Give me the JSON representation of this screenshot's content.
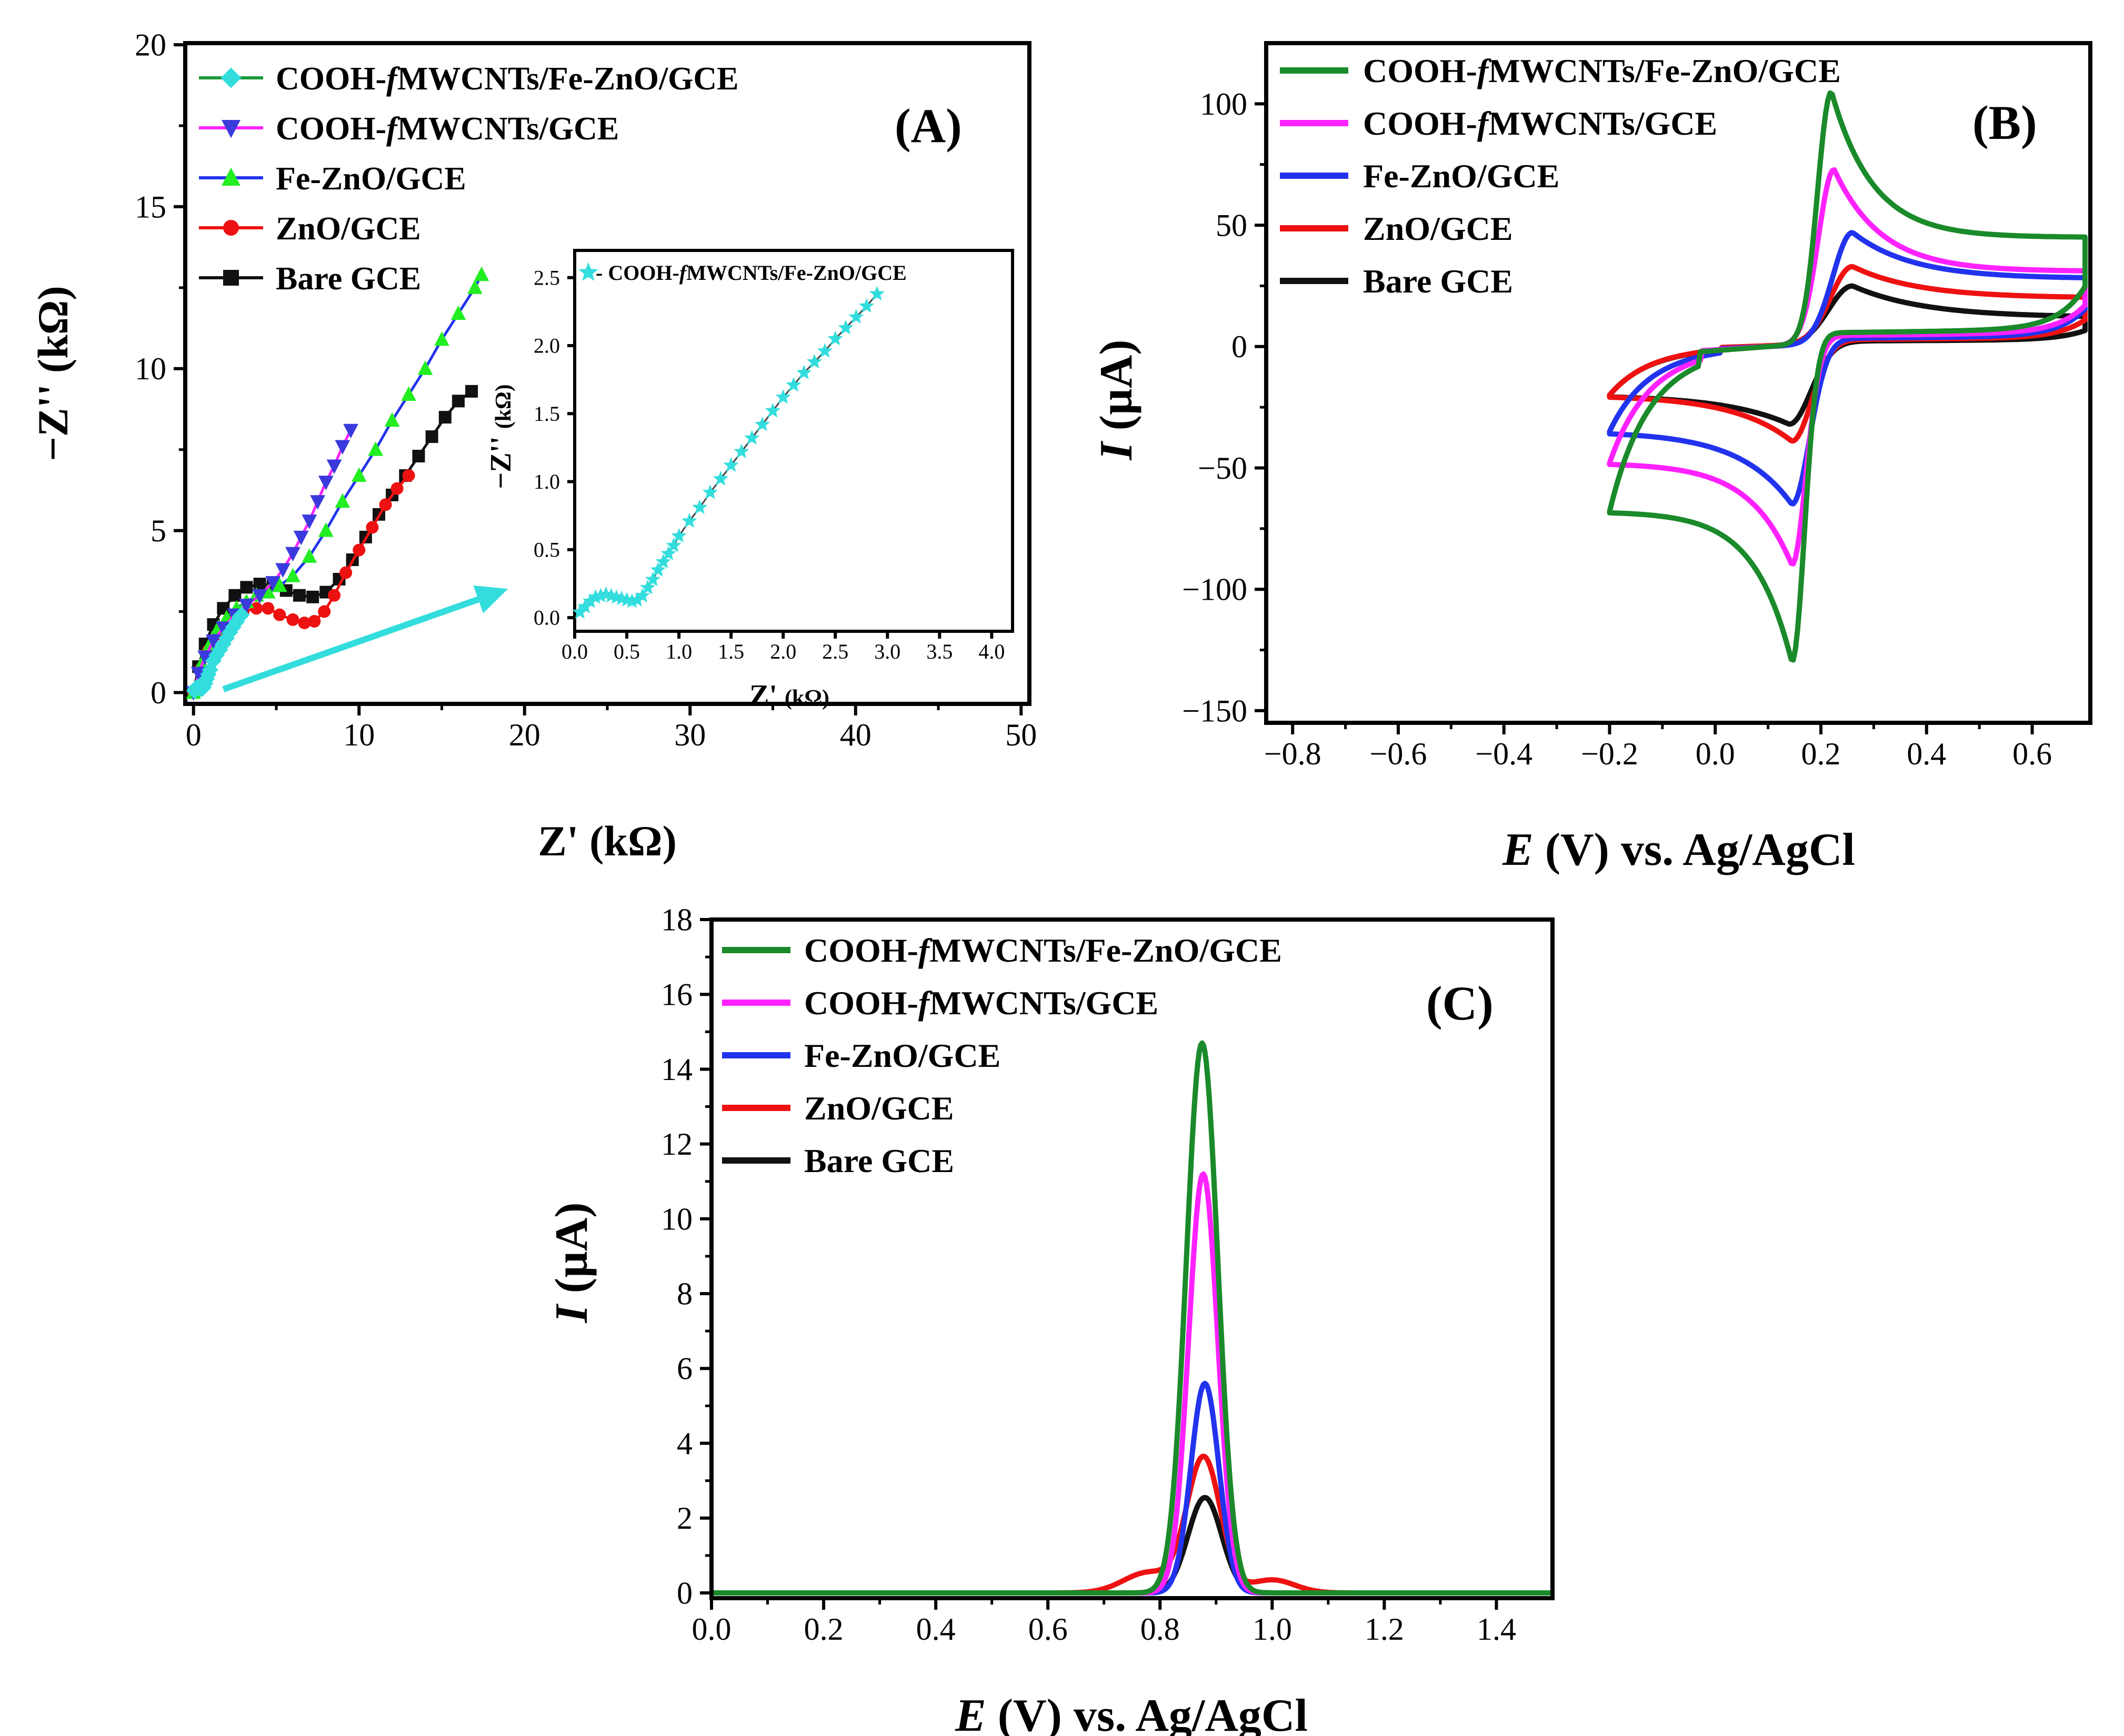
{
  "chart_data": [
    {
      "id": "A",
      "type": "scatter",
      "panel_label": "(A)",
      "title": "",
      "xlabel": "Z' (kΩ)",
      "ylabel": "−Z'' (kΩ)",
      "xlim": [
        0,
        50
      ],
      "ylim": [
        0,
        20
      ],
      "xticks": [
        0,
        10,
        20,
        30,
        40,
        50
      ],
      "yticks": [
        0,
        5,
        10,
        15,
        20
      ],
      "legend_position": "top-left",
      "series": [
        {
          "name": "COOH-fMWCNTs/Fe-ZnO/GCE",
          "label_pre": "COOH-",
          "label_ital": "f",
          "label_post": "MWCNTs/Fe-ZnO/GCE",
          "color": "#1a9a3a",
          "marker": "diamond",
          "marker_color": "#33dddd",
          "x": [
            0.05,
            0.1,
            0.15,
            0.2,
            0.25,
            0.3,
            0.35,
            0.4,
            0.45,
            0.5,
            0.55,
            0.6,
            0.7,
            0.8,
            0.9,
            1.0,
            1.2,
            1.4,
            1.6,
            1.8,
            2.0,
            2.2,
            2.4,
            2.6,
            2.8,
            2.9
          ],
          "y": [
            0.05,
            0.1,
            0.14,
            0.16,
            0.17,
            0.16,
            0.14,
            0.13,
            0.12,
            0.12,
            0.13,
            0.16,
            0.28,
            0.42,
            0.56,
            0.7,
            0.98,
            1.16,
            1.32,
            1.5,
            1.68,
            1.86,
            2.02,
            2.18,
            2.34,
            2.4
          ]
        },
        {
          "name": "COOH-fMWCNTs/GCE",
          "label_pre": "COOH-",
          "label_ital": "f",
          "label_post": "MWCNTs/GCE",
          "color": "#ff22ff",
          "marker": "triangle-down",
          "marker_color": "#3a3adc",
          "x": [
            0,
            0.3,
            0.7,
            1.2,
            1.8,
            2.5,
            3.2,
            4.0,
            4.8,
            5.4,
            6.0,
            6.5,
            7.0,
            7.5,
            8.0,
            8.5,
            9.0,
            9.5
          ],
          "y": [
            0,
            0.6,
            1.1,
            1.6,
            2.0,
            2.4,
            2.7,
            3.0,
            3.4,
            3.8,
            4.3,
            4.8,
            5.3,
            5.9,
            6.5,
            7.0,
            7.6,
            8.1
          ]
        },
        {
          "name": "Fe-ZnO/GCE",
          "label_pre": "Fe-ZnO/GCE",
          "label_ital": "",
          "label_post": "",
          "color": "#2233ee",
          "marker": "triangle-up",
          "marker_color": "#22ee22",
          "x": [
            0,
            0.5,
            1.0,
            1.5,
            2.0,
            2.6,
            3.2,
            3.8,
            4.5,
            5.2,
            6.0,
            7.0,
            8.0,
            9.0,
            10.0,
            11.0,
            12.0,
            13.0,
            14.0,
            15.0,
            16.0,
            17.0,
            17.4
          ],
          "y": [
            0,
            0.9,
            1.5,
            2.0,
            2.3,
            2.6,
            2.8,
            3.0,
            3.1,
            3.3,
            3.6,
            4.2,
            5.0,
            5.9,
            6.7,
            7.5,
            8.4,
            9.2,
            10.0,
            10.9,
            11.7,
            12.5,
            12.9
          ]
        },
        {
          "name": "ZnO/GCE",
          "label_pre": "ZnO/GCE",
          "label_ital": "",
          "label_post": "",
          "color": "#ee1111",
          "marker": "circle",
          "marker_color": "#ee1111",
          "x": [
            0,
            0.4,
            0.9,
            1.5,
            2.2,
            3.0,
            3.8,
            4.5,
            5.2,
            6.0,
            6.7,
            7.3,
            7.9,
            8.5,
            9.2,
            10.0,
            10.8,
            11.6,
            12.3,
            13.0
          ],
          "y": [
            0,
            0.7,
            1.3,
            1.8,
            2.2,
            2.5,
            2.6,
            2.6,
            2.4,
            2.25,
            2.15,
            2.2,
            2.5,
            3.0,
            3.7,
            4.4,
            5.1,
            5.8,
            6.3,
            6.7
          ]
        },
        {
          "name": "Bare GCE",
          "label_pre": "Bare GCE",
          "label_ital": "",
          "label_post": "",
          "color": "#111111",
          "marker": "square",
          "marker_color": "#111111",
          "x": [
            0,
            0.3,
            0.7,
            1.2,
            1.8,
            2.5,
            3.2,
            4.0,
            4.8,
            5.6,
            6.4,
            7.2,
            8.0,
            8.8,
            9.6,
            10.4,
            11.2,
            12.0,
            12.8,
            13.6,
            14.4,
            15.2,
            16.0,
            16.8
          ],
          "y": [
            0,
            0.8,
            1.5,
            2.1,
            2.6,
            3.0,
            3.25,
            3.35,
            3.3,
            3.15,
            3.0,
            2.95,
            3.1,
            3.5,
            4.1,
            4.8,
            5.5,
            6.1,
            6.7,
            7.3,
            7.9,
            8.5,
            9.0,
            9.3
          ]
        }
      ],
      "arrow": {
        "from": [
          1.8,
          0.1
        ],
        "to": [
          19.0,
          3.2
        ],
        "color": "#33dddd"
      },
      "inset": {
        "xlabel_main": "Z'",
        "xlabel_unit": "(kΩ)",
        "ylabel_main": "−Z''",
        "ylabel_unit": "(kΩ)",
        "xlim": [
          0,
          4.2
        ],
        "ylim": [
          -0.1,
          2.7
        ],
        "xticks": [
          "0.0",
          "0.5",
          "1.0",
          "1.5",
          "2.0",
          "2.5",
          "3.0",
          "3.5",
          "4.0"
        ],
        "yticks": [
          "0.0",
          "0.5",
          "1.0",
          "1.5",
          "2.0",
          "2.5"
        ],
        "series": [
          {
            "name": "COOH-fMWCNTs/Fe-ZnO/GCE",
            "label_pre": "- COOH-",
            "label_ital": "f",
            "label_post": "MWCNTs/Fe-ZnO/GCE",
            "color": "#33dddd",
            "marker": "star",
            "x": [
              0.05,
              0.1,
              0.15,
              0.2,
              0.25,
              0.3,
              0.35,
              0.4,
              0.45,
              0.5,
              0.55,
              0.6,
              0.65,
              0.7,
              0.75,
              0.8,
              0.85,
              0.9,
              0.95,
              1.0,
              1.1,
              1.2,
              1.3,
              1.4,
              1.5,
              1.6,
              1.7,
              1.8,
              1.9,
              2.0,
              2.1,
              2.2,
              2.3,
              2.4,
              2.5,
              2.6,
              2.7,
              2.8,
              2.9
            ],
            "y": [
              0.04,
              0.08,
              0.12,
              0.15,
              0.16,
              0.17,
              0.16,
              0.15,
              0.14,
              0.13,
              0.12,
              0.13,
              0.16,
              0.22,
              0.28,
              0.35,
              0.41,
              0.47,
              0.53,
              0.6,
              0.71,
              0.81,
              0.92,
              1.02,
              1.12,
              1.22,
              1.32,
              1.42,
              1.52,
              1.62,
              1.71,
              1.8,
              1.88,
              1.96,
              2.05,
              2.13,
              2.21,
              2.29,
              2.38
            ]
          }
        ]
      }
    },
    {
      "id": "B",
      "type": "line",
      "panel_label": "(B)",
      "title": "",
      "xlabel": "E (V) vs. Ag/AgCl",
      "xlabel_ital": "E",
      "xlabel_rest": " (V) vs. Ag/AgCl",
      "ylabel": "I (µA)",
      "ylabel_ital": "I",
      "ylabel_rest": " (µA)",
      "xlim": [
        -0.8,
        0.7
      ],
      "ylim": [
        -150,
        125
      ],
      "xticks": [
        "−0.8",
        "−0.6",
        "−0.4",
        "−0.2",
        "0.0",
        "0.2",
        "0.4",
        "0.6"
      ],
      "xtick_values": [
        -0.8,
        -0.6,
        -0.4,
        -0.2,
        0.0,
        0.2,
        0.4,
        0.6
      ],
      "yticks": [
        "−150",
        "−100",
        "−50",
        "0",
        "50",
        "100"
      ],
      "ytick_values": [
        -150,
        -100,
        -50,
        0,
        50,
        100
      ],
      "legend_position": "top-left",
      "series": [
        {
          "name": "COOH-fMWCNTs/Fe-ZnO/GCE",
          "label_pre": "COOH-",
          "label_ital": "f",
          "label_post": "MWCNTs/Fe-ZnO/GCE",
          "color": "#1a8a2a",
          "ipa": 105,
          "ipc": -130,
          "epa": 0.22,
          "epc": 0.145,
          "wa": 0.035,
          "wc": 0.032,
          "iend": 45,
          "istart": -68,
          "bgp": 10,
          "bgn": -5
        },
        {
          "name": "COOH-fMWCNTs/GCE",
          "label_pre": "COOH-",
          "label_ital": "f",
          "label_post": "MWCNTs/GCE",
          "color": "#ff22ff",
          "ipa": 73,
          "ipc": -90,
          "epa": 0.225,
          "epc": 0.145,
          "wa": 0.04,
          "wc": 0.036,
          "iend": 31,
          "istart": -48,
          "bgp": 8,
          "bgn": -4
        },
        {
          "name": "Fe-ZnO/GCE",
          "label_pre": "Fe-ZnO/GCE",
          "label_ital": "",
          "label_post": "",
          "color": "#2233ee",
          "ipa": 47,
          "ipc": -65,
          "epa": 0.26,
          "epc": 0.145,
          "wa": 0.05,
          "wc": 0.045,
          "iend": 28,
          "istart": -35,
          "bgp": 6,
          "bgn": -3
        },
        {
          "name": "ZnO/GCE",
          "label_pre": "ZnO/GCE",
          "label_ital": "",
          "label_post": "",
          "color": "#ee1111",
          "ipa": 33,
          "ipc": -39,
          "epa": 0.26,
          "epc": 0.145,
          "wa": 0.055,
          "wc": 0.05,
          "iend": 20,
          "istart": -20,
          "bgp": 5,
          "bgn": -2
        },
        {
          "name": "Bare GCE",
          "label_pre": "Bare GCE",
          "label_ital": "",
          "label_post": "",
          "color": "#111111",
          "ipa": 25,
          "ipc": -32,
          "epa": 0.26,
          "epc": 0.14,
          "wa": 0.06,
          "wc": 0.055,
          "iend": 12,
          "istart": -20,
          "bgp": 4,
          "bgn": -2
        }
      ]
    },
    {
      "id": "C",
      "type": "line",
      "panel_label": "(C)",
      "title": "",
      "xlabel": "E (V) vs. Ag/AgCl",
      "xlabel_ital": "E",
      "xlabel_rest": " (V) vs. Ag/AgCl",
      "ylabel": "I (µA)",
      "ylabel_ital": "I",
      "ylabel_rest": " (µA)",
      "xlim": [
        0.0,
        1.5
      ],
      "ylim": [
        0,
        18
      ],
      "xticks": [
        "0.0",
        "0.2",
        "0.4",
        "0.6",
        "0.8",
        "1.0",
        "1.2",
        "1.4"
      ],
      "xtick_values": [
        0.0,
        0.2,
        0.4,
        0.6,
        0.8,
        1.0,
        1.2,
        1.4
      ],
      "yticks": [
        "0",
        "2",
        "4",
        "6",
        "8",
        "10",
        "12",
        "14",
        "16",
        "18"
      ],
      "ytick_values": [
        0,
        2,
        4,
        6,
        8,
        10,
        12,
        14,
        16,
        18
      ],
      "legend_position": "top-left",
      "series": [
        {
          "name": "COOH-fMWCNTs/Fe-ZnO/GCE",
          "label_pre": "COOH-",
          "label_ital": "f",
          "label_post": "MWCNTs/Fe-ZnO/GCE",
          "color": "#1a8a2a",
          "peak": 14.7,
          "center": 0.875,
          "width": 0.028,
          "shoulder": 0
        },
        {
          "name": "COOH-fMWCNTs/GCE",
          "label_pre": "COOH-",
          "label_ital": "f",
          "label_post": "MWCNTs/GCE",
          "color": "#ff22ff",
          "peak": 11.2,
          "center": 0.877,
          "width": 0.026,
          "shoulder": 0
        },
        {
          "name": "Fe-ZnO/GCE",
          "label_pre": "Fe-ZnO/GCE",
          "label_ital": "",
          "label_post": "",
          "color": "#2233ee",
          "peak": 5.6,
          "center": 0.88,
          "width": 0.025,
          "shoulder": 0
        },
        {
          "name": "ZnO/GCE",
          "label_pre": "ZnO/GCE",
          "label_ital": "",
          "label_post": "",
          "color": "#ee1111",
          "peak": 3.6,
          "center": 0.878,
          "width": 0.03,
          "shoulder": 0.55
        },
        {
          "name": "Bare GCE",
          "label_pre": "Bare GCE",
          "label_ital": "",
          "label_post": "",
          "color": "#111111",
          "peak": 2.55,
          "center": 0.88,
          "width": 0.03,
          "shoulder": 0
        }
      ]
    }
  ]
}
